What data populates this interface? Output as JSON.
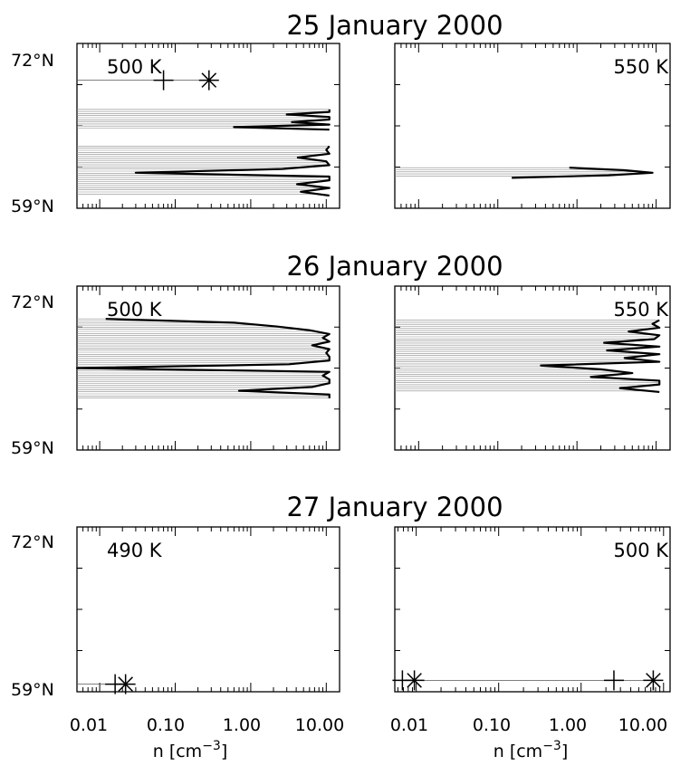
{
  "chart_data": {
    "type": "line",
    "y_axis": {
      "ticks": [
        "72°N",
        "59°N"
      ],
      "ylim": [
        59,
        72
      ]
    },
    "x_axis": {
      "scale": "log",
      "label": "n [cm^-3]"
    },
    "rows": [
      {
        "title": "25 January 2000",
        "panels": [
          {
            "label": "500 K",
            "xlim": [
              0.005,
              15
            ],
            "x_ticks": [],
            "profiles": [
              {
                "lat": [
                  66.8,
                  66.6,
                  66.4,
                  66.2,
                  66.0,
                  65.8,
                  65.6,
                  65.4,
                  65.2
                ],
                "n": [
                  11,
                  11,
                  3.0,
                  11,
                  11,
                  3.5,
                  11,
                  0.6,
                  11
                ]
              },
              {
                "lat": [
                  63.9,
                  63.6,
                  63.3,
                  63.0,
                  62.7,
                  62.4,
                  62.1,
                  61.8,
                  61.5,
                  61.2,
                  60.9,
                  60.6,
                  60.3,
                  60.0
                ],
                "n": [
                  11,
                  10,
                  11,
                  4.2,
                  10,
                  11,
                  2.6,
                  0.03,
                  11,
                  11,
                  4.1,
                  11,
                  4.6,
                  11
                ]
              }
            ],
            "markers": [
              {
                "type": "plus",
                "lat": 69.1,
                "n": 0.07
              },
              {
                "type": "asterisk",
                "lat": 69.1,
                "n": 0.28
              }
            ],
            "marker_line_lat": 69.1
          },
          {
            "label": "550 K",
            "xlim": [
              0.005,
              15
            ],
            "x_ticks": [],
            "profiles": [
              {
                "lat": [
                  62.2,
                  62.0,
                  61.8,
                  61.6,
                  61.4
                ],
                "n": [
                  0.8,
                  4.0,
                  9.0,
                  2.5,
                  0.15
                ]
              }
            ],
            "markers": []
          }
        ]
      },
      {
        "title": "26 January 2000",
        "panels": [
          {
            "label": "500 K",
            "xlim": [
              0.005,
              15
            ],
            "x_ticks": [],
            "profiles": [
              {
                "lat": [
                  69.4,
                  69.1,
                  68.8,
                  68.5,
                  68.2,
                  67.9,
                  67.6,
                  67.3,
                  67.0,
                  66.7,
                  66.4,
                  66.1,
                  65.8,
                  65.5,
                  65.2,
                  64.9,
                  64.6,
                  64.3,
                  64.0,
                  63.7,
                  63.4,
                  63.1
                ],
                "n": [
                  0.012,
                  0.6,
                  2.2,
                  6.0,
                  11,
                  9.0,
                  11,
                  6.5,
                  11,
                  10,
                  11,
                  11,
                  3.2,
                  0.005,
                  11,
                  9.0,
                  11,
                  11,
                  6.5,
                  0.7,
                  11,
                  11
                ]
              }
            ],
            "markers": []
          },
          {
            "label": "550 K",
            "xlim": [
              0.005,
              15
            ],
            "x_ticks": [],
            "profiles": [
              {
                "lat": [
                  69.3,
                  69.0,
                  68.7,
                  68.4,
                  68.1,
                  67.8,
                  67.5,
                  67.2,
                  66.9,
                  66.6,
                  66.3,
                  66.0,
                  65.7,
                  65.4,
                  65.1,
                  64.8,
                  64.5,
                  64.2,
                  63.9,
                  63.6
                ],
                "n": [
                  11,
                  9.0,
                  11,
                  4.5,
                  11,
                  9.5,
                  2.2,
                  11,
                  2.4,
                  11,
                  4.0,
                  11,
                  0.35,
                  2.0,
                  5.0,
                  1.5,
                  11,
                  11,
                  3.5,
                  11
                ]
              }
            ],
            "markers": []
          }
        ]
      },
      {
        "title": "27 January 2000",
        "panels": [
          {
            "label": "490 K",
            "xlim": [
              0.005,
              15
            ],
            "x_ticks": [
              "0.01",
              "0.10",
              "1.00",
              "10.00"
            ],
            "profiles": [],
            "markers": [
              {
                "type": "plus",
                "lat": 59.6,
                "n": 0.016
              },
              {
                "type": "asterisk",
                "lat": 59.6,
                "n": 0.022
              }
            ],
            "marker_line_lat": 59.6
          },
          {
            "label": "500 K",
            "xlim": [
              0.0055,
              12
            ],
            "x_ticks": [
              "0.01",
              "0.10",
              "1.00",
              "10.00"
            ],
            "profiles": [],
            "markers": [
              {
                "type": "plus",
                "lat": 59.9,
                "n": 0.0068
              },
              {
                "type": "asterisk",
                "lat": 59.9,
                "n": 0.0095
              },
              {
                "type": "plus",
                "lat": 59.9,
                "n": 2.5
              },
              {
                "type": "asterisk",
                "lat": 59.9,
                "n": 7.5
              }
            ],
            "marker_line_lat": 59.9
          }
        ]
      }
    ]
  }
}
